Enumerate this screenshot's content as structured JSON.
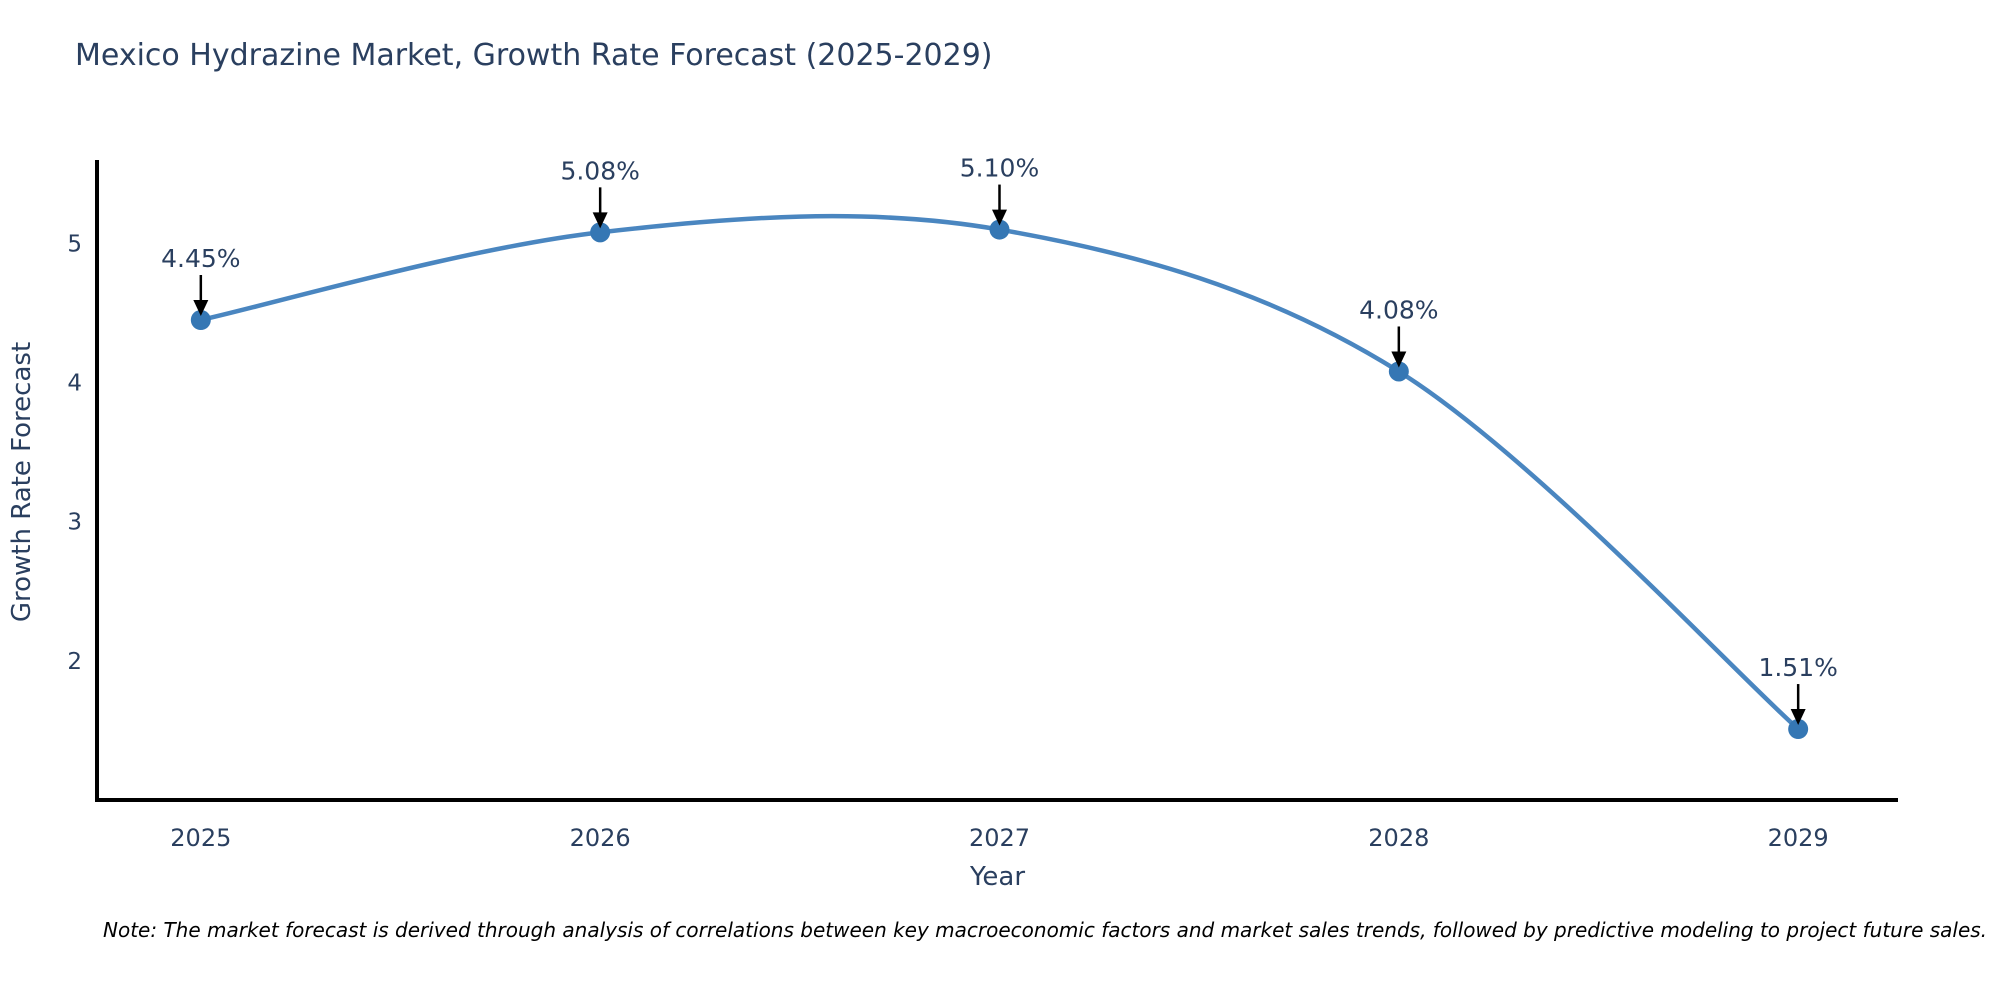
{
  "chart": {
    "title": "Mexico Hydrazine Market, Growth Rate Forecast (2025-2029)",
    "xlabel": "Year",
    "ylabel": "Growth Rate Forecast",
    "note": "Note: The market forecast is derived through analysis of correlations between key macroeconomic factors and market sales trends, followed by predictive modeling to project future sales."
  },
  "chart_data": {
    "type": "line",
    "title": "Mexico Hydrazine Market, Growth Rate Forecast (2025-2029)",
    "xlabel": "Year",
    "ylabel": "Growth Rate Forecast",
    "x": [
      2025,
      2026,
      2027,
      2028,
      2029
    ],
    "values": [
      4.45,
      5.08,
      5.1,
      4.08,
      1.51
    ],
    "point_labels": [
      "4.45%",
      "5.08%",
      "5.10%",
      "4.08%",
      "1.51%"
    ],
    "xticks": [
      "2025",
      "2026",
      "2027",
      "2028",
      "2029"
    ],
    "yticks": [
      2,
      3,
      4,
      5
    ],
    "xlim": [
      2024.74,
      2029.25
    ],
    "ylim": [
      1.0,
      5.6
    ],
    "grid": false,
    "legend": "none",
    "line_shape": "spline",
    "colors": {
      "line": "#4a86c0",
      "marker": "#3577b4",
      "axis": "#000000",
      "annotation_arrow": "#000000",
      "text": "#2a3f5f"
    }
  }
}
